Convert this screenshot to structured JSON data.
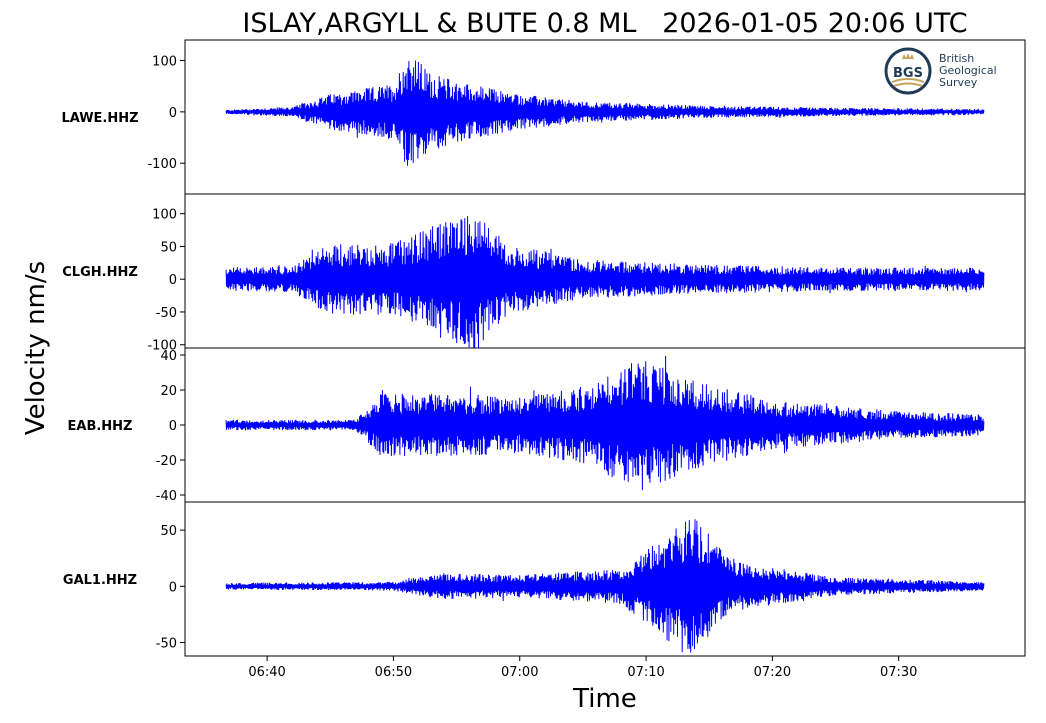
{
  "chart_data": {
    "type": "line",
    "title": "ISLAY,ARGYLL & BUTE 0.8 ML   2026-01-05 20:06 UTC",
    "xlabel": "Time",
    "ylabel": "Velocity nm/s",
    "x_ticks": [
      "06:40",
      "06:50",
      "07:00",
      "07:10",
      "07:20",
      "07:30"
    ],
    "x_range": [
      "06:33:30",
      "07:40:00"
    ],
    "data_span": [
      "06:36:45",
      "07:36:45"
    ],
    "line_color": "#0000ff",
    "grid": false,
    "panels": [
      {
        "station": "LAWE.HHZ",
        "ylim": [
          -160,
          140
        ],
        "yticks": [
          100,
          0,
          -100
        ],
        "ytick_labels": [
          "100",
          "0",
          "-100"
        ],
        "series": [
          {
            "time": "06:36:45",
            "amplitude": 4
          },
          {
            "time": "06:42:00",
            "amplitude": 10
          },
          {
            "time": "06:45:00",
            "amplitude": 35
          },
          {
            "time": "06:50:00",
            "amplitude": 55
          },
          {
            "time": "06:51:10",
            "amplitude": 120
          },
          {
            "time": "06:53:00",
            "amplitude": 75
          },
          {
            "time": "06:56:00",
            "amplitude": 55
          },
          {
            "time": "07:00:00",
            "amplitude": 35
          },
          {
            "time": "07:05:00",
            "amplitude": 20
          },
          {
            "time": "07:15:00",
            "amplitude": 12
          },
          {
            "time": "07:25:00",
            "amplitude": 8
          },
          {
            "time": "07:36:45",
            "amplitude": 6
          }
        ]
      },
      {
        "station": "CLGH.HHZ",
        "ylim": [
          -105,
          130
        ],
        "yticks": [
          100,
          50,
          0,
          -50,
          -100
        ],
        "ytick_labels": [
          "100",
          "50",
          "0",
          "-50",
          "-100"
        ],
        "series": [
          {
            "time": "06:36:45",
            "amplitude": 18
          },
          {
            "time": "06:42:00",
            "amplitude": 20
          },
          {
            "time": "06:45:00",
            "amplitude": 55
          },
          {
            "time": "06:50:00",
            "amplitude": 55
          },
          {
            "time": "06:56:30",
            "amplitude": 110
          },
          {
            "time": "06:59:00",
            "amplitude": 55
          },
          {
            "time": "07:05:00",
            "amplitude": 30
          },
          {
            "time": "07:15:00",
            "amplitude": 22
          },
          {
            "time": "07:25:00",
            "amplitude": 18
          },
          {
            "time": "07:36:45",
            "amplitude": 18
          }
        ]
      },
      {
        "station": "EAB.HHZ",
        "ylim": [
          -44,
          44
        ],
        "yticks": [
          40,
          20,
          0,
          -20,
          -40
        ],
        "ytick_labels": [
          "40",
          "20",
          "0",
          "-20",
          "-40"
        ],
        "series": [
          {
            "time": "06:36:45",
            "amplitude": 3
          },
          {
            "time": "06:47:00",
            "amplitude": 3
          },
          {
            "time": "06:49:00",
            "amplitude": 18
          },
          {
            "time": "06:55:00",
            "amplitude": 18
          },
          {
            "time": "07:00:00",
            "amplitude": 16
          },
          {
            "time": "07:05:00",
            "amplitude": 22
          },
          {
            "time": "07:09:30",
            "amplitude": 38
          },
          {
            "time": "07:14:00",
            "amplitude": 25
          },
          {
            "time": "07:20:00",
            "amplitude": 14
          },
          {
            "time": "07:30:00",
            "amplitude": 8
          },
          {
            "time": "07:36:45",
            "amplitude": 6
          }
        ]
      },
      {
        "station": "GAL1.HHZ",
        "ylim": [
          -62,
          75
        ],
        "yticks": [
          50,
          0,
          -50
        ],
        "ytick_labels": [
          "50",
          "0",
          "-50"
        ],
        "series": [
          {
            "time": "06:36:45",
            "amplitude": 3
          },
          {
            "time": "06:50:00",
            "amplitude": 4
          },
          {
            "time": "06:54:00",
            "amplitude": 12
          },
          {
            "time": "07:00:00",
            "amplitude": 10
          },
          {
            "time": "07:08:00",
            "amplitude": 16
          },
          {
            "time": "07:13:30",
            "amplitude": 65
          },
          {
            "time": "07:17:00",
            "amplitude": 22
          },
          {
            "time": "07:25:00",
            "amplitude": 8
          },
          {
            "time": "07:36:45",
            "amplitude": 4
          }
        ]
      }
    ]
  },
  "logo": {
    "initials": "BGS",
    "lines": [
      "British",
      "Geological",
      "Survey"
    ],
    "colors": {
      "ring": "#1f3b57",
      "gold": "#c7a25a",
      "blue": "#1f3b57"
    }
  }
}
